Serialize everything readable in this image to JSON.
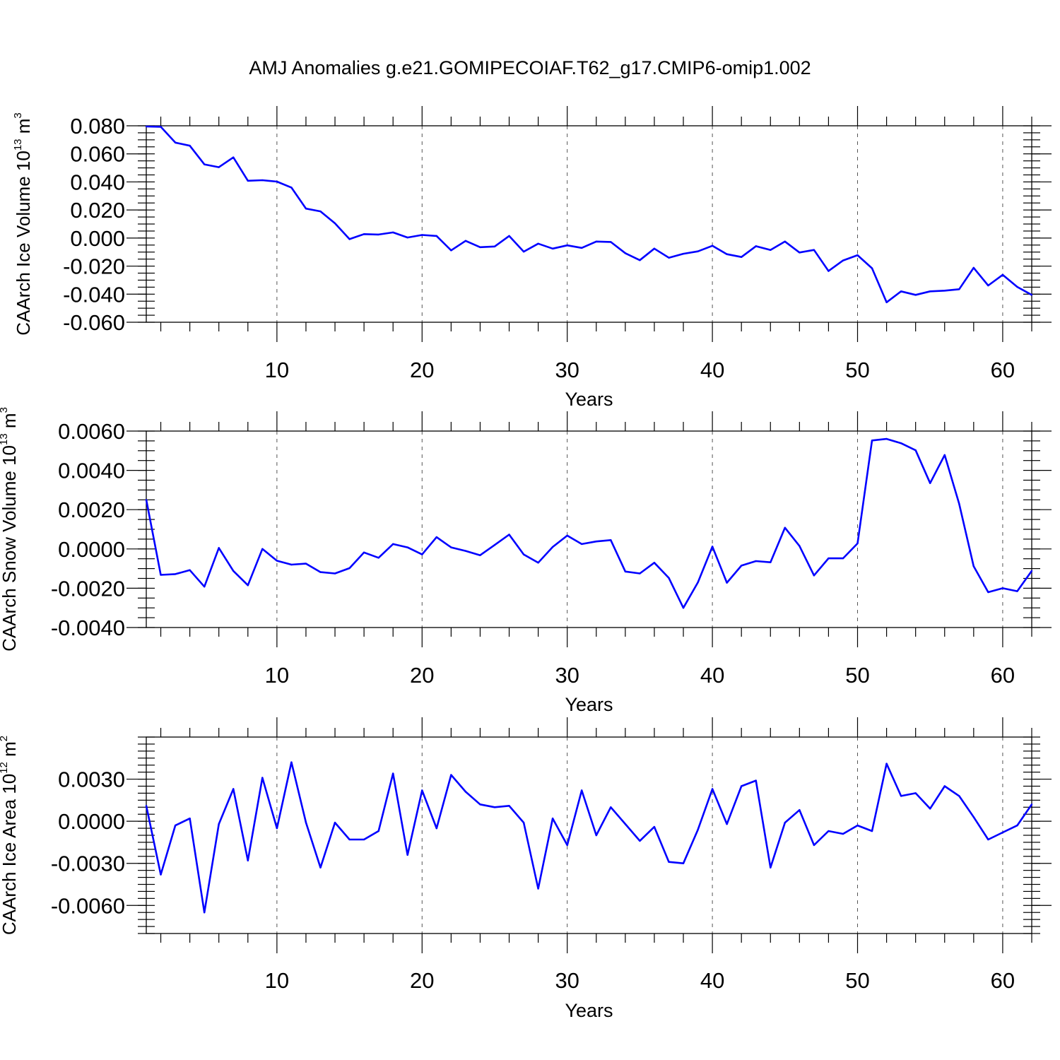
{
  "chart_data": [
    {
      "type": "line",
      "title": "AMJ Anomalies g.e21.GOMIPECOIAF.T62_g17.CMIP6-omip1.002",
      "xlabel": "Years",
      "ylabel": "CAArch Ice Volume 10",
      "ylabel_exp": "13",
      "ylabel_unit": " m",
      "ylabel_unit_exp": "3",
      "xlim": [
        1,
        62
      ],
      "ylim": [
        -0.06,
        0.08
      ],
      "xticks": [
        "10",
        "20",
        "30",
        "40",
        "50",
        "60"
      ],
      "yticks": [
        "0.080",
        "0.060",
        "0.040",
        "0.020",
        "0.000",
        "-0.020",
        "-0.040",
        "-0.060"
      ],
      "x": [
        1,
        2,
        3,
        4,
        5,
        6,
        7,
        8,
        9,
        10,
        11,
        12,
        13,
        14,
        15,
        16,
        17,
        18,
        19,
        20,
        21,
        22,
        23,
        24,
        25,
        26,
        27,
        28,
        29,
        30,
        31,
        32,
        33,
        34,
        35,
        36,
        37,
        38,
        39,
        40,
        41,
        42,
        43,
        44,
        45,
        46,
        47,
        48,
        49,
        50,
        51,
        52,
        53,
        54,
        55,
        56,
        57,
        58,
        59,
        60,
        61,
        62
      ],
      "values": [
        0.0795,
        0.0793,
        0.068,
        0.0658,
        0.0525,
        0.0505,
        0.0575,
        0.0408,
        0.0412,
        0.0402,
        0.036,
        0.021,
        0.019,
        0.0105,
        -0.0008,
        0.0028,
        0.0025,
        0.004,
        0.0004,
        0.0022,
        0.0015,
        -0.0088,
        -0.002,
        -0.0065,
        -0.006,
        0.0015,
        -0.0097,
        -0.004,
        -0.0075,
        -0.0052,
        -0.007,
        -0.0025,
        -0.0028,
        -0.0108,
        -0.0158,
        -0.0075,
        -0.014,
        -0.0112,
        -0.0095,
        -0.0055,
        -0.0115,
        -0.0135,
        -0.0058,
        -0.0085,
        -0.0025,
        -0.0103,
        -0.0085,
        -0.0235,
        -0.016,
        -0.0122,
        -0.0215,
        -0.0458,
        -0.038,
        -0.0405,
        -0.038,
        -0.0375,
        -0.0365,
        -0.0212,
        -0.0338,
        -0.0262,
        -0.0348,
        -0.0405
      ]
    },
    {
      "type": "line",
      "title": "",
      "xlabel": "Years",
      "ylabel": "CAArch Snow Volume 10",
      "ylabel_exp": "13",
      "ylabel_unit": " m",
      "ylabel_unit_exp": "3",
      "xlim": [
        1,
        62
      ],
      "ylim": [
        -0.004,
        0.006
      ],
      "xticks": [
        "10",
        "20",
        "30",
        "40",
        "50",
        "60"
      ],
      "yticks": [
        "0.0060",
        "0.0040",
        "0.0020",
        "0.0000",
        "-0.0020",
        "-0.0040"
      ],
      "x": [
        1,
        2,
        3,
        4,
        5,
        6,
        7,
        8,
        9,
        10,
        11,
        12,
        13,
        14,
        15,
        16,
        17,
        18,
        19,
        20,
        21,
        22,
        23,
        24,
        25,
        26,
        27,
        28,
        29,
        30,
        31,
        32,
        33,
        34,
        35,
        36,
        37,
        38,
        39,
        40,
        41,
        42,
        43,
        44,
        45,
        46,
        47,
        48,
        49,
        50,
        51,
        52,
        53,
        54,
        55,
        56,
        57,
        58,
        59,
        60,
        61,
        62
      ],
      "values": [
        0.0025,
        -0.00132,
        -0.00128,
        -0.00108,
        -0.00192,
        5e-05,
        -0.00112,
        -0.00185,
        0.0,
        -0.0006,
        -0.0008,
        -0.00075,
        -0.00118,
        -0.00125,
        -0.00098,
        -0.00018,
        -0.00045,
        0.00025,
        8e-05,
        -0.00028,
        0.0006,
        8e-05,
        -0.0001,
        -0.00032,
        0.0002,
        0.00073,
        -0.00028,
        -0.0007,
        0.0001,
        0.00068,
        0.00025,
        0.00038,
        0.00045,
        -0.00115,
        -0.00125,
        -0.0007,
        -0.00148,
        -0.003,
        -0.0017,
        0.00012,
        -0.00172,
        -0.00085,
        -0.00062,
        -0.00068,
        0.00108,
        0.00015,
        -0.00135,
        -0.00048,
        -0.00048,
        0.00028,
        0.00552,
        0.0056,
        0.00538,
        0.00502,
        0.00335,
        0.00478,
        0.0023,
        -0.00088,
        -0.0022,
        -0.002,
        -0.00215,
        -0.00112
      ]
    },
    {
      "type": "line",
      "title": "",
      "xlabel": "Years",
      "ylabel": "CAArch Ice Area 10",
      "ylabel_exp": "12",
      "ylabel_unit": " m",
      "ylabel_unit_exp": "2",
      "xlim": [
        1,
        62
      ],
      "ylim": [
        -0.008,
        0.006
      ],
      "xticks": [
        "10",
        "20",
        "30",
        "40",
        "50",
        "60"
      ],
      "yticks": [
        "0.0030",
        "0.0000",
        "-0.0030",
        "-0.0060"
      ],
      "ytick_values": [
        0.003,
        0.0,
        -0.003,
        -0.006
      ],
      "x": [
        1,
        2,
        3,
        4,
        5,
        6,
        7,
        8,
        9,
        10,
        11,
        12,
        13,
        14,
        15,
        16,
        17,
        18,
        19,
        20,
        21,
        22,
        23,
        24,
        25,
        26,
        27,
        28,
        29,
        30,
        31,
        32,
        33,
        34,
        35,
        36,
        37,
        38,
        39,
        40,
        41,
        42,
        43,
        44,
        45,
        46,
        47,
        48,
        49,
        50,
        51,
        52,
        53,
        54,
        55,
        56,
        57,
        58,
        59,
        60,
        61,
        62
      ],
      "values": [
        0.0011,
        -0.0038,
        -0.0003,
        0.0002,
        -0.0065,
        -0.0002,
        0.0023,
        -0.0028,
        0.0031,
        -0.0005,
        0.0042,
        -0.0001,
        -0.0033,
        -0.0001,
        -0.0013,
        -0.0013,
        -0.0007,
        0.0034,
        -0.0024,
        0.0022,
        -0.0005,
        0.0033,
        0.0021,
        0.0012,
        0.001,
        0.0011,
        -0.0001,
        -0.0048,
        0.0002,
        -0.0017,
        0.0022,
        -0.001,
        0.001,
        -0.0002,
        -0.0014,
        -0.0004,
        -0.0029,
        -0.003,
        -0.0006,
        0.0023,
        -0.0002,
        0.0025,
        0.0029,
        -0.0033,
        -0.0001,
        0.0008,
        -0.0017,
        -0.0007,
        -0.0009,
        -0.0003,
        -0.0007,
        0.0041,
        0.0018,
        0.002,
        0.0009,
        0.0025,
        0.0018,
        0.0003,
        -0.0013,
        -0.0008,
        -0.0003,
        0.0012
      ]
    }
  ]
}
